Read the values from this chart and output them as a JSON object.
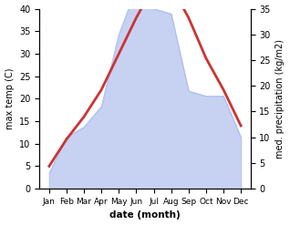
{
  "months": [
    "Jan",
    "Feb",
    "Mar",
    "Apr",
    "May",
    "Jun",
    "Jul",
    "Aug",
    "Sep",
    "Oct",
    "Nov",
    "Dec"
  ],
  "max_temp": [
    5,
    11,
    16,
    22,
    30,
    38,
    45,
    45,
    38,
    29,
    22,
    14
  ],
  "precipitation": [
    3,
    10,
    12,
    16,
    30,
    39,
    35,
    34,
    19,
    18,
    18,
    10
  ],
  "temp_ylim": [
    0,
    40
  ],
  "precip_ylim": [
    0,
    35
  ],
  "temp_color": "#cc3333",
  "precip_color": "#aabbee",
  "precip_fill_alpha": 0.65,
  "xlabel": "date (month)",
  "ylabel_left": "max temp (C)",
  "ylabel_right": "med. precipitation (kg/m2)",
  "temp_linewidth": 2.0,
  "bg_color": "#ffffff"
}
